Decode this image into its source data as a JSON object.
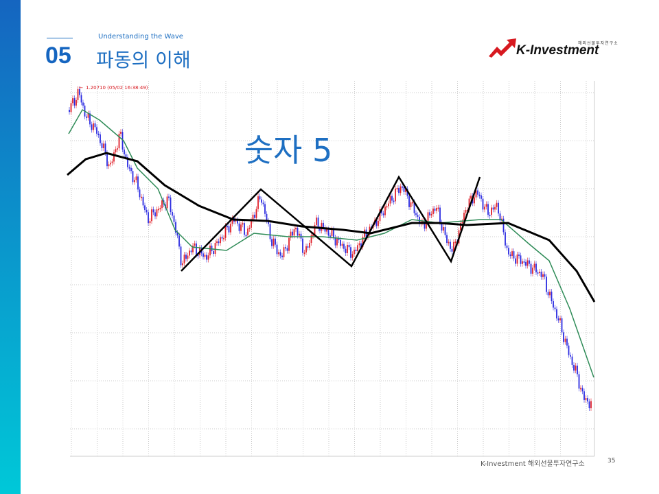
{
  "header": {
    "subtitle": "Understanding the Wave",
    "number": "05",
    "title": "파동의 이해"
  },
  "logo": {
    "tagline": "해외선물투자연구소",
    "name": "K-Investment"
  },
  "chart": {
    "price_note": "1.20710 (05/02 16:38:49)",
    "caption": "숫자 5"
  },
  "footer": {
    "text": "K-Investment 해외선물투자연구소",
    "page": "35"
  }
}
